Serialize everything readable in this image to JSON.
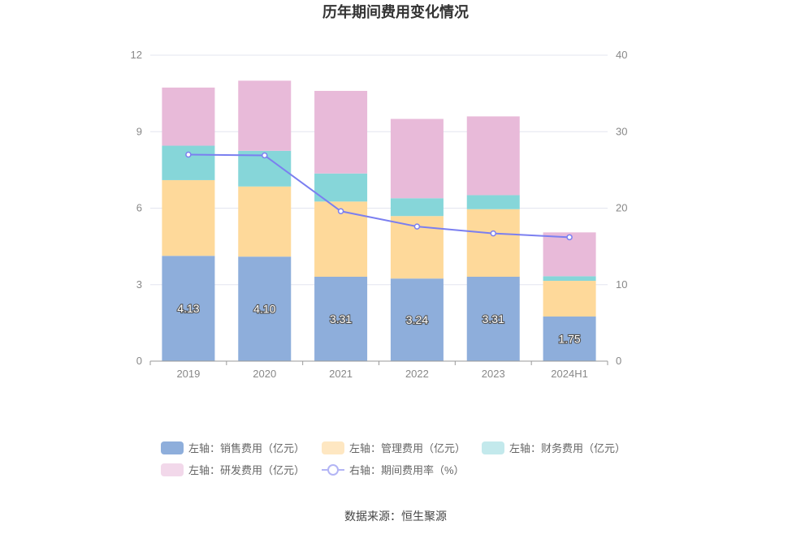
{
  "chart_data": {
    "type": "bar",
    "title": "历年期间费用变化情况",
    "categories": [
      "2019",
      "2020",
      "2021",
      "2022",
      "2023",
      "2024H1"
    ],
    "y_left": {
      "min": 0,
      "max": 12,
      "ticks": [
        "0",
        "3",
        "6",
        "9",
        "12"
      ]
    },
    "y_right": {
      "min": 0,
      "max": 40,
      "ticks": [
        "0",
        "10",
        "20",
        "30",
        "40"
      ]
    },
    "stacked": true,
    "series": [
      {
        "name": "左轴：销售费用（亿元）",
        "axis": "left",
        "color": "#8eaedb",
        "values": [
          4.13,
          4.1,
          3.31,
          3.24,
          3.31,
          1.75
        ],
        "labels": [
          "4.13",
          "4.10",
          "3.31",
          "3.24",
          "3.31",
          "1.75"
        ]
      },
      {
        "name": "左轴：管理费用（亿元）",
        "axis": "left",
        "color": "#fed99a",
        "values": [
          2.97,
          2.75,
          2.95,
          2.45,
          2.65,
          1.4
        ]
      },
      {
        "name": "左轴：财务费用（亿元）",
        "axis": "left",
        "color": "#86d6d9",
        "values": [
          1.35,
          1.4,
          1.1,
          0.7,
          0.55,
          0.18
        ]
      },
      {
        "name": "左轴：研发费用（亿元）",
        "axis": "left",
        "color": "#e8bad9",
        "values": [
          2.28,
          2.75,
          3.24,
          3.11,
          3.09,
          1.72
        ]
      },
      {
        "name": "右轴：期间费用率（%）",
        "axis": "right",
        "type": "line",
        "color": "#7b7ff0",
        "values": [
          27.0,
          26.9,
          19.6,
          17.6,
          16.7,
          16.2
        ]
      }
    ],
    "legend_position": "bottom",
    "grid": true
  },
  "source": "数据来源：恒生聚源"
}
